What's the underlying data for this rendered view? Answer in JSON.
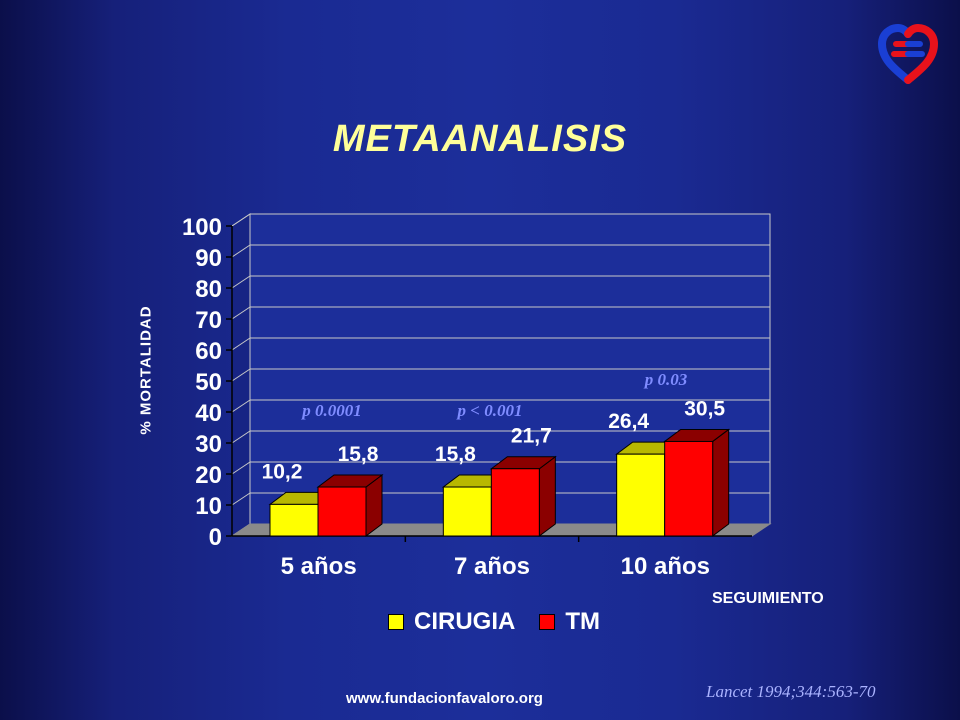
{
  "slide": {
    "title": "METAANALISIS",
    "footer_url": "www.fundacionfavaloro.org",
    "citation": "Lancet 1994;344:563-70"
  },
  "logo": {
    "icon": "heart-logo-icon",
    "colors": [
      "#e8121b",
      "#1a3fd4"
    ]
  },
  "chart_data": {
    "type": "bar",
    "xlabel": "SEGUIMIENTO",
    "ylabel": "% MORTALIDAD",
    "ylim": [
      0,
      100
    ],
    "yticks": [
      "0",
      "10",
      "20",
      "30",
      "40",
      "50",
      "60",
      "70",
      "80",
      "90",
      "100"
    ],
    "grid": true,
    "legend_position": "bottom",
    "categories": [
      "5 años",
      "7 años",
      "10 años"
    ],
    "series": [
      {
        "name": "CIRUGIA",
        "values": [
          10.2,
          15.8,
          26.4
        ],
        "labels": [
          "10,2",
          "15,8",
          "26,4"
        ],
        "color": "#ffff00",
        "side": "#b8b800"
      },
      {
        "name": "TM",
        "values": [
          15.8,
          21.7,
          30.5
        ],
        "labels": [
          "15,8",
          "21,7",
          "30,5"
        ],
        "color": "#ff0000",
        "side": "#8b0000"
      }
    ],
    "annotations": [
      "p 0.0001",
      "p < 0.001",
      "p 0.03"
    ]
  }
}
